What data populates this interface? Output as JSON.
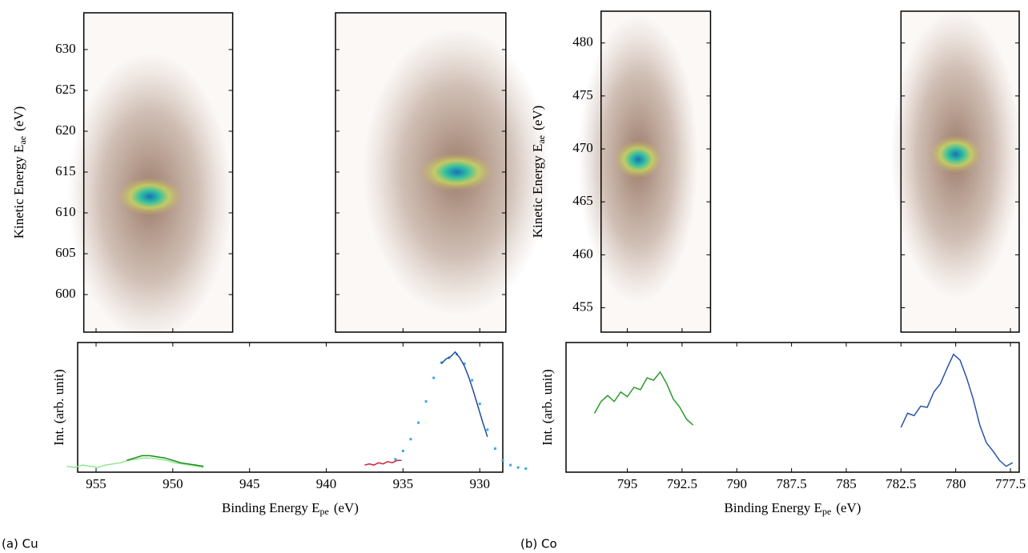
{
  "chart_data": [
    {
      "type": "spectrum-map",
      "caption": "(a) Cu",
      "ylabel": {
        "text": "Kinetic Energy E",
        "sub": "ae",
        "unit": "(eV)"
      },
      "ylim": [
        595.4,
        634.5
      ],
      "yticks": [
        600,
        605,
        610,
        615,
        620,
        625,
        630
      ],
      "xlabel": {
        "text": "Binding Energy E",
        "sub": "pe",
        "unit": "(eV)"
      },
      "xlim": [
        956.2,
        928.5
      ],
      "xticks": [
        955,
        950,
        945,
        940,
        935,
        930
      ],
      "windows": [
        [
          955.8,
          946.1
        ],
        [
          939.4,
          928.3
        ]
      ],
      "hotspots": [
        {
          "x": 951.5,
          "y": 612
        },
        {
          "x": 931.5,
          "y": 615
        }
      ],
      "intensity_label": "Int. (arb. unit)",
      "intensity_lim": [
        0,
        1.1
      ],
      "series": [
        {
          "color": "#90e890",
          "style": "line",
          "x": [
            956.9,
            956.4,
            955.9,
            955.4,
            954.9,
            954.4,
            953.9,
            953.4,
            952.9,
            952.4,
            951.9,
            951.4,
            950.9,
            950.4,
            949.9,
            949.4,
            948.9,
            948.4,
            948.0
          ],
          "values": [
            0.05,
            0.04,
            0.06,
            0.05,
            0.04,
            0.06,
            0.07,
            0.08,
            0.1,
            0.11,
            0.12,
            0.12,
            0.11,
            0.1,
            0.08,
            0.07,
            0.06,
            0.05,
            0.04
          ]
        },
        {
          "color": "#1f8a1f",
          "style": "line",
          "x": [
            953.0,
            952.5,
            952.0,
            951.5,
            951.0,
            950.5,
            950.0,
            949.5,
            949.0,
            948.5,
            948.0
          ],
          "values": [
            0.1,
            0.12,
            0.14,
            0.14,
            0.13,
            0.12,
            0.1,
            0.08,
            0.07,
            0.06,
            0.05
          ]
        },
        {
          "color": "#d0203c",
          "style": "line",
          "x": [
            937.5,
            937.2,
            936.9,
            936.6,
            936.3,
            936.0,
            935.7,
            935.4,
            935.1
          ],
          "values": [
            0.06,
            0.07,
            0.06,
            0.08,
            0.07,
            0.09,
            0.08,
            0.1,
            0.1
          ]
        },
        {
          "color": "#3ba7f0",
          "style": "points",
          "x": [
            935.5,
            935.0,
            934.5,
            934.0,
            933.5,
            933.0,
            932.5,
            932.0,
            931.5,
            931.0,
            930.5,
            930.0,
            929.5,
            929.0,
            928.5,
            928.0,
            927.5,
            927.0
          ],
          "values": [
            0.11,
            0.18,
            0.28,
            0.42,
            0.6,
            0.8,
            0.93,
            0.97,
            1.0,
            0.92,
            0.78,
            0.58,
            0.36,
            0.2,
            0.1,
            0.06,
            0.04,
            0.03
          ]
        },
        {
          "color": "#1f4f9a",
          "style": "line",
          "x": [
            932.5,
            932.2,
            931.9,
            931.6,
            931.3,
            931.0,
            930.7,
            930.4,
            930.1,
            929.8,
            929.5
          ],
          "values": [
            0.92,
            0.96,
            0.98,
            1.02,
            0.97,
            0.9,
            0.8,
            0.68,
            0.55,
            0.42,
            0.3
          ]
        }
      ]
    },
    {
      "type": "spectrum-map",
      "caption": "(b) Co",
      "ylabel": {
        "text": "Kinetic Energy E",
        "sub": "ae",
        "unit": "(eV)"
      },
      "ylim": [
        452.7,
        483
      ],
      "yticks": [
        455,
        460,
        465,
        470,
        475,
        480
      ],
      "xlabel": {
        "text": "Binding Energy E",
        "sub": "pe",
        "unit": "(eV)"
      },
      "xlim": [
        797.8,
        777.1
      ],
      "xticks": [
        795,
        792.5,
        790,
        787.5,
        785,
        782.5,
        780,
        777.5
      ],
      "windows": [
        [
          796.2,
          791.2
        ],
        [
          782.5,
          777.1
        ]
      ],
      "hotspots": [
        {
          "x": 794.5,
          "y": 469
        },
        {
          "x": 780,
          "y": 469.5
        }
      ],
      "intensity_label": "Int. (arb. unit)",
      "intensity_lim": [
        0,
        1.1
      ],
      "series": [
        {
          "color": "#2a9a2a",
          "style": "line",
          "x": [
            796.5,
            796.2,
            795.9,
            795.6,
            795.3,
            795.0,
            794.7,
            794.4,
            794.1,
            793.8,
            793.5,
            793.2,
            792.9,
            792.6,
            792.3,
            792.0
          ],
          "values": [
            0.5,
            0.6,
            0.65,
            0.6,
            0.68,
            0.64,
            0.72,
            0.7,
            0.8,
            0.78,
            0.85,
            0.75,
            0.62,
            0.55,
            0.45,
            0.4
          ]
        },
        {
          "color": "#2855a5",
          "style": "line",
          "x": [
            782.5,
            782.2,
            781.9,
            781.6,
            781.3,
            781.0,
            780.7,
            780.4,
            780.1,
            779.8,
            779.5,
            779.2,
            778.9,
            778.6,
            778.3,
            778.0,
            777.7,
            777.4
          ],
          "values": [
            0.38,
            0.5,
            0.48,
            0.56,
            0.55,
            0.68,
            0.75,
            0.88,
            1.0,
            0.95,
            0.8,
            0.62,
            0.4,
            0.25,
            0.18,
            0.1,
            0.05,
            0.08
          ]
        }
      ]
    }
  ]
}
